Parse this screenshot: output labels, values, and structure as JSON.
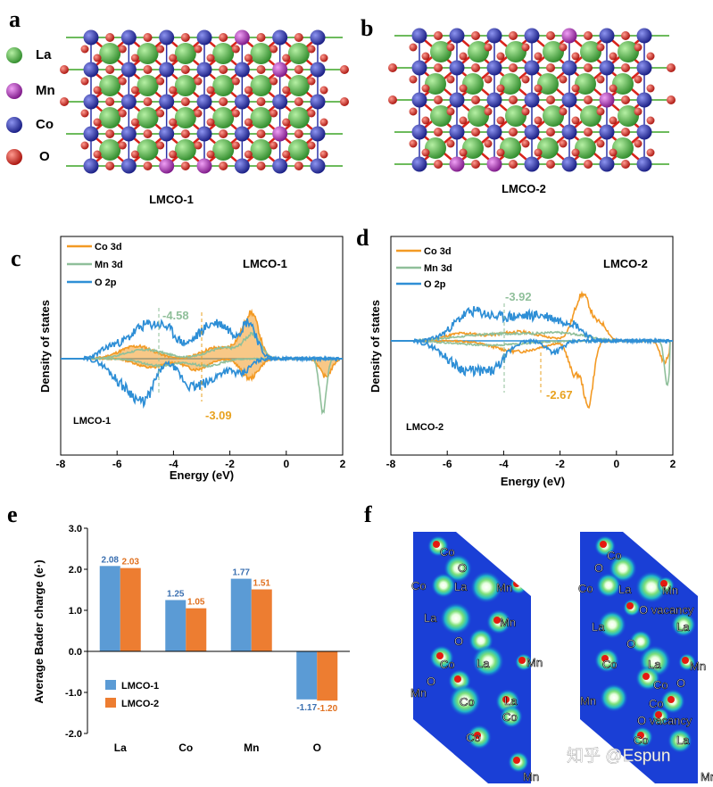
{
  "panel_labels": {
    "a": "a",
    "b": "b",
    "c": "c",
    "d": "d",
    "e": "e",
    "f": "f"
  },
  "structures": {
    "legend": [
      {
        "label": "La",
        "color": "#4fae45"
      },
      {
        "label": "Mn",
        "color": "#a62db0"
      },
      {
        "label": "Co",
        "color": "#2b33a8"
      },
      {
        "label": "O",
        "color": "#e01a12"
      }
    ],
    "caption_a": "LMCO-1",
    "caption_b": "LMCO-2"
  },
  "chart_data": [
    {
      "type": "line",
      "panel": "c",
      "title": "LMCO-1",
      "corner_label": "LMCO-1",
      "xlabel": "Energy (eV)",
      "ylabel": "Density of states",
      "xlim": [
        -8,
        2
      ],
      "xticks": [
        "-8",
        "-6",
        "-4",
        "-2",
        "0",
        "2"
      ],
      "legend": [
        {
          "name": "Co 3d",
          "color": "#f39a24"
        },
        {
          "name": "Mn 3d",
          "color": "#8fbf9a"
        },
        {
          "name": "O 2p",
          "color": "#2f8fd6"
        }
      ],
      "annotations": [
        {
          "text": "-4.58",
          "x": -4.58,
          "color": "#8fbf9a"
        },
        {
          "text": "-3.09",
          "x": -3.09,
          "color": "#e8a220"
        }
      ]
    },
    {
      "type": "line",
      "panel": "d",
      "title": "LMCO-2",
      "corner_label": "LMCO-2",
      "xlabel": "Energy (eV)",
      "ylabel": "Density of states",
      "xlim": [
        -8,
        2
      ],
      "xticks": [
        "-8",
        "-6",
        "-4",
        "-2",
        "0",
        "2"
      ],
      "legend": [
        {
          "name": "Co 3d",
          "color": "#f39a24"
        },
        {
          "name": "Mn 3d",
          "color": "#8fbf9a"
        },
        {
          "name": "O 2p",
          "color": "#2f8fd6"
        }
      ],
      "annotations": [
        {
          "text": "-3.92",
          "x": -3.92,
          "color": "#8fbf9a"
        },
        {
          "text": "-2.67",
          "x": -2.67,
          "color": "#e8a220"
        }
      ]
    },
    {
      "type": "bar",
      "panel": "e",
      "ylabel": "Average Bader charge (e·)",
      "categories": [
        "La",
        "Co",
        "Mn",
        "O"
      ],
      "ylim": [
        -2.0,
        3.0
      ],
      "yticks": [
        "3.0",
        "2.0",
        "1.0",
        "0.0",
        "-1.0",
        "-2.0"
      ],
      "series": [
        {
          "name": "LMCO-1",
          "color": "#5b9bd5",
          "values": [
            2.08,
            1.25,
            1.77,
            -1.17
          ],
          "labels": [
            "2.08",
            "1.25",
            "1.77",
            "-1.17"
          ]
        },
        {
          "name": "LMCO-2",
          "color": "#ed7d31",
          "values": [
            2.03,
            1.05,
            1.51,
            -1.2
          ],
          "labels": [
            "2.03",
            "1.05",
            "1.51",
            "-1.20"
          ]
        }
      ]
    }
  ],
  "panel_f": {
    "left_labels": [
      "Co",
      "O",
      "Co",
      "La",
      "Mn",
      "La",
      "Mn",
      "O",
      "Co",
      "La",
      "Mn",
      "O",
      "Co",
      "La",
      "Co",
      "Mn",
      "Co",
      "Mn"
    ],
    "right_labels": [
      "Co",
      "O",
      "Co",
      "La",
      "Mn",
      "O vacancy",
      "La",
      "O",
      "La",
      "Co",
      "La",
      "Mn",
      "Co",
      "O",
      "Mn",
      "Co",
      "O vacancy",
      "Co",
      "La",
      "Mn"
    ]
  },
  "watermark": "知乎 @Espun"
}
